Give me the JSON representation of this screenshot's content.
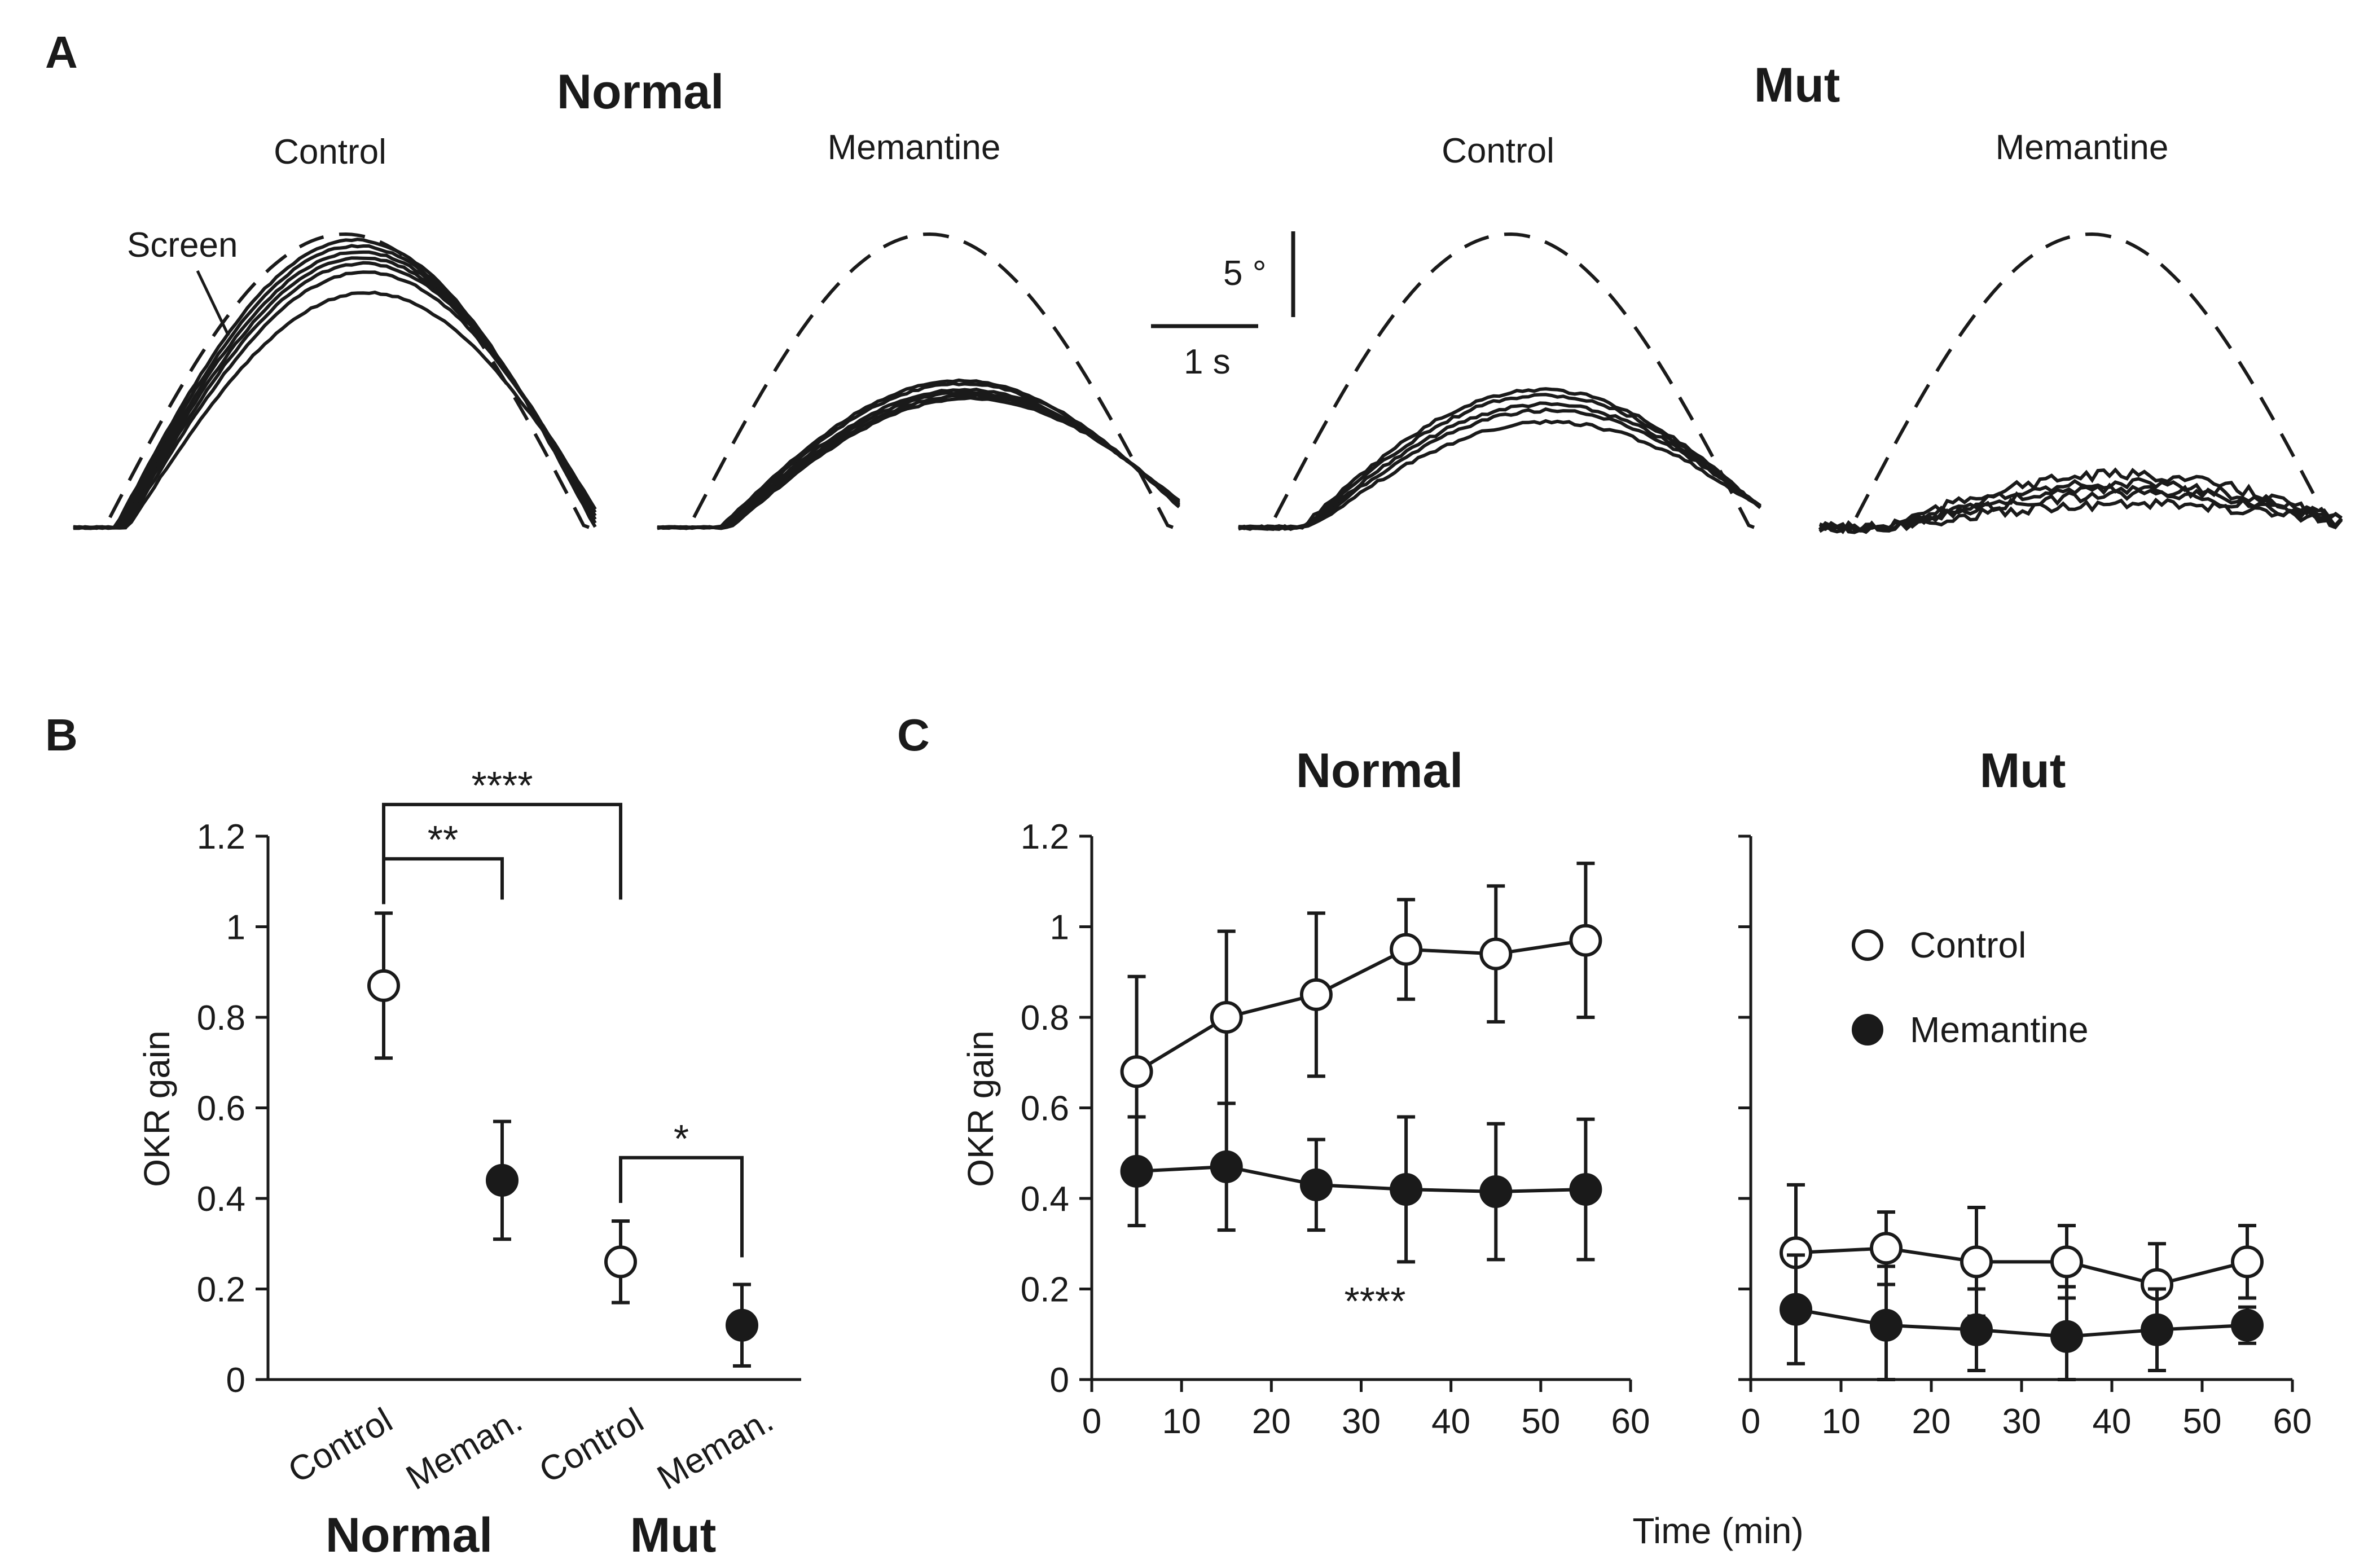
{
  "panels": {
    "A": "A",
    "B": "B",
    "C": "C"
  },
  "panelA": {
    "group_titles": [
      "Normal",
      "Mut"
    ],
    "sub_titles": [
      "Control",
      "Memantine",
      "Control",
      "Memantine"
    ],
    "screen_label": "Screen",
    "scalebar": {
      "vertical_label": "5 °",
      "horizontal_label": "1 s"
    },
    "trace_gains": [
      [
        0.98,
        0.96,
        0.94,
        0.92,
        0.9,
        0.87,
        0.8
      ],
      [
        0.5,
        0.49,
        0.47,
        0.46,
        0.45,
        0.44
      ],
      [
        0.47,
        0.45,
        0.42,
        0.4,
        0.36
      ],
      [
        0.18,
        0.15,
        0.13,
        0.11,
        0.08
      ]
    ],
    "trace_style": [
      "screen (dashed)",
      "eye (solid)"
    ]
  },
  "chart_data": [
    {
      "panel": "B",
      "type": "scatter",
      "ylabel": "OKR gain",
      "ylim": [
        0,
        1.2
      ],
      "yticks": [
        "0",
        "0.2",
        "0.4",
        "0.6",
        "0.8",
        "1",
        "1.2"
      ],
      "categories": [
        "Control",
        "Meman.",
        "Control",
        "Meman."
      ],
      "groups": [
        "Normal",
        "Mut"
      ],
      "values": [
        0.87,
        0.44,
        0.26,
        0.12
      ],
      "errors": [
        0.16,
        0.13,
        0.09,
        0.09
      ],
      "markers": [
        "open",
        "filled",
        "open",
        "filled"
      ],
      "significance": [
        {
          "from": 0,
          "to": 1,
          "label": "**"
        },
        {
          "from": 0,
          "to": 2,
          "label": "****"
        },
        {
          "from": 2,
          "to": 3,
          "label": "*"
        }
      ]
    },
    {
      "panel": "C",
      "type": "line",
      "title": "Normal",
      "xlabel": "Time (min)",
      "ylabel": "OKR gain",
      "xlim": [
        0,
        60
      ],
      "ylim": [
        0,
        1.2
      ],
      "xticks": [
        "0",
        "10",
        "20",
        "30",
        "40",
        "50",
        "60"
      ],
      "yticks": [
        "0",
        "0.2",
        "0.4",
        "0.6",
        "0.8",
        "1",
        "1.2"
      ],
      "x": [
        5,
        15,
        25,
        35,
        45,
        55
      ],
      "series": [
        {
          "name": "Control",
          "marker": "open",
          "values": [
            0.68,
            0.8,
            0.85,
            0.95,
            0.94,
            0.97
          ],
          "errors": [
            0.21,
            0.19,
            0.18,
            0.11,
            0.15,
            0.17
          ]
        },
        {
          "name": "Memantine",
          "marker": "filled",
          "values": [
            0.46,
            0.47,
            0.43,
            0.42,
            0.415,
            0.42
          ],
          "errors": [
            0.12,
            0.14,
            0.1,
            0.16,
            0.15,
            0.155
          ]
        }
      ],
      "annotation": "****"
    },
    {
      "panel": "C",
      "type": "line",
      "title": "Mut",
      "xlabel": "Time (min)",
      "xlim": [
        0,
        60
      ],
      "ylim": [
        0,
        1.2
      ],
      "xticks": [
        "0",
        "10",
        "20",
        "30",
        "40",
        "50",
        "60"
      ],
      "x": [
        5,
        15,
        25,
        35,
        45,
        55
      ],
      "series": [
        {
          "name": "Control",
          "marker": "open",
          "values": [
            0.28,
            0.29,
            0.26,
            0.26,
            0.21,
            0.26
          ],
          "errors": [
            0.15,
            0.08,
            0.12,
            0.08,
            0.09,
            0.08
          ]
        },
        {
          "name": "Memantine",
          "marker": "filled",
          "values": [
            0.155,
            0.12,
            0.11,
            0.095,
            0.11,
            0.12
          ],
          "errors": [
            0.12,
            0.13,
            0.09,
            0.11,
            0.09,
            0.04
          ]
        }
      ],
      "legend": [
        "Control",
        "Memantine"
      ]
    }
  ],
  "panelC_xlabel": "Time (min)"
}
